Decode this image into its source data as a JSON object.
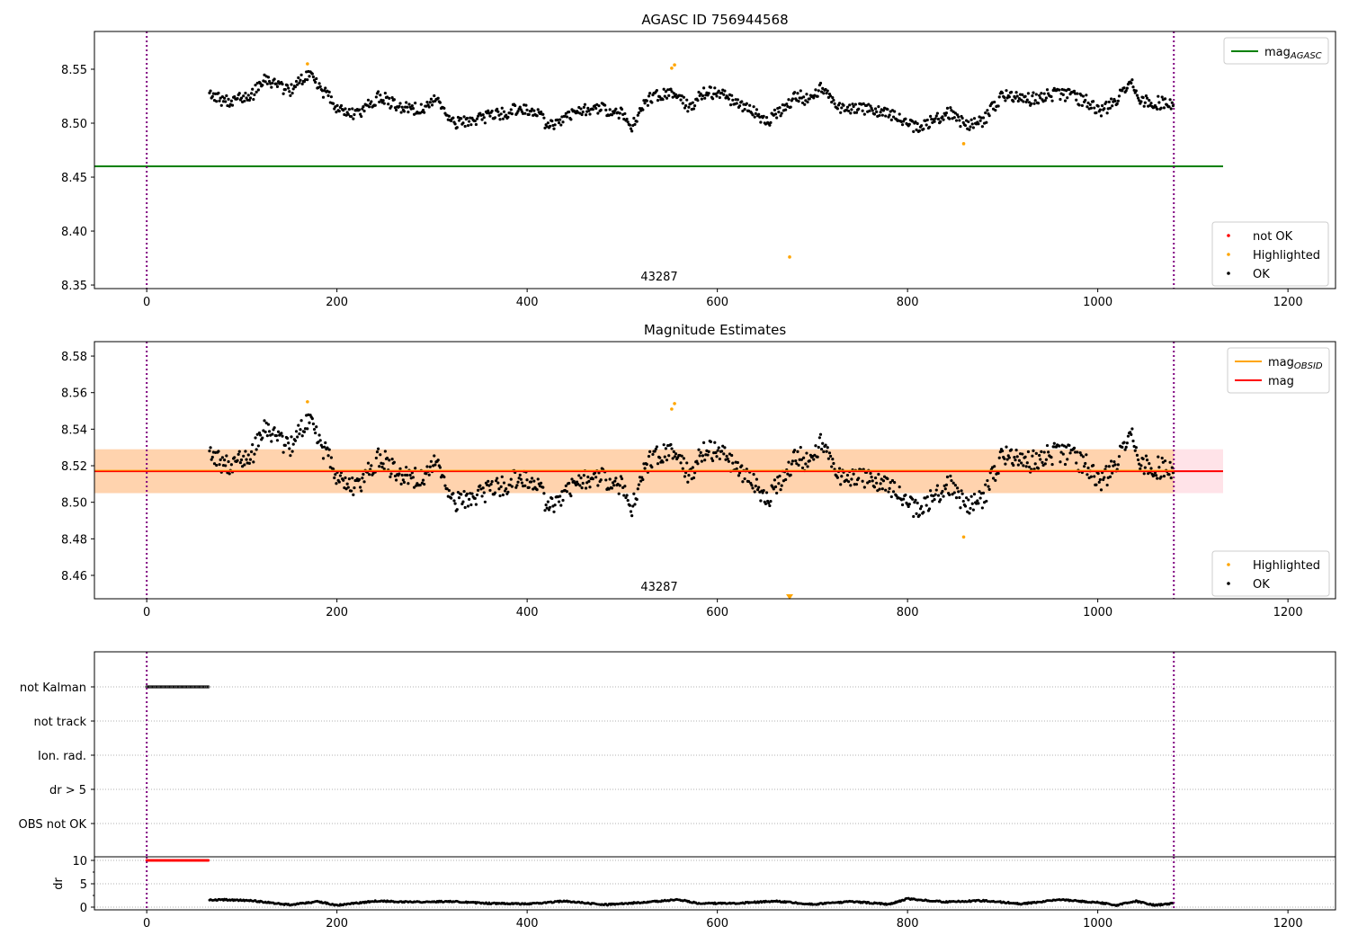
{
  "chart_data": [
    {
      "type": "scatter",
      "title": "AGASC ID 756944568",
      "xlim": [
        -55,
        1250
      ],
      "ylim": [
        8.3467,
        8.585
      ],
      "xticks": [
        0,
        200,
        400,
        600,
        800,
        1000,
        1200
      ],
      "yticks": [
        8.35,
        8.4,
        8.45,
        8.5,
        8.55
      ],
      "ytick_labels": [
        "8.35",
        "8.40",
        "8.45",
        "8.50",
        "8.55"
      ],
      "mag_agasc": 8.46,
      "vlines": [
        0,
        1080
      ],
      "annotation": "43287",
      "legend_top": {
        "label": "mag",
        "sub": "AGASC",
        "color": "#008000"
      },
      "legend_bottom": [
        {
          "label": "not OK",
          "color": "#ff0000"
        },
        {
          "label": "Highlighted",
          "color": "#ffa500"
        },
        {
          "label": "OK",
          "color": "#000000"
        }
      ],
      "highlighted": [
        [
          169,
          8.555
        ],
        [
          552,
          8.551
        ],
        [
          555,
          8.554
        ],
        [
          859,
          8.481
        ],
        [
          676,
          8.376
        ]
      ]
    },
    {
      "type": "scatter",
      "title": "Magnitude Estimates",
      "xlim": [
        -55,
        1250
      ],
      "ylim": [
        8.4472,
        8.5879
      ],
      "xticks": [
        0,
        200,
        400,
        600,
        800,
        1000,
        1200
      ],
      "yticks": [
        8.46,
        8.48,
        8.5,
        8.52,
        8.54,
        8.56,
        8.58
      ],
      "ytick_labels": [
        "8.46",
        "8.48",
        "8.50",
        "8.52",
        "8.54",
        "8.56",
        "8.58"
      ],
      "mag": 8.517,
      "mag_band": [
        8.505,
        8.529
      ],
      "annotation": "43287",
      "legend_top": [
        {
          "label": "mag",
          "sub": "OBSID",
          "color": "#ffa500"
        },
        {
          "label": "mag",
          "sub": "",
          "color": "#ff0000"
        }
      ],
      "legend_bottom": [
        {
          "label": "Highlighted",
          "color": "#ffa500"
        },
        {
          "label": "OK",
          "color": "#000000"
        }
      ]
    },
    {
      "type": "scatter",
      "title": "",
      "categories": [
        "not Kalman",
        "not track",
        "Ion. rad.",
        "dr > 5",
        "OBS not OK"
      ],
      "flags": {
        "not Kalman": [
          0,
          65
        ]
      }
    },
    {
      "type": "scatter",
      "ylabel": "dr",
      "ylim": [
        -0.58,
        10.77
      ],
      "yticks": [
        0,
        5,
        10
      ],
      "ytick_labels": [
        "0",
        "5",
        "10"
      ],
      "dr_saturated_range": [
        0,
        65
      ],
      "dr_saturated_value": 10,
      "dr_trend": [
        [
          65,
          1.5
        ],
        [
          80,
          1.6
        ],
        [
          110,
          1.4
        ],
        [
          150,
          0.5
        ],
        [
          180,
          1.2
        ],
        [
          200,
          0.4
        ],
        [
          240,
          1.3
        ],
        [
          280,
          1.1
        ],
        [
          320,
          1.2
        ],
        [
          360,
          0.8
        ],
        [
          400,
          0.7
        ],
        [
          440,
          1.3
        ],
        [
          480,
          0.5
        ],
        [
          520,
          1.0
        ],
        [
          560,
          1.6
        ],
        [
          580,
          0.8
        ],
        [
          620,
          0.8
        ],
        [
          660,
          1.3
        ],
        [
          700,
          0.6
        ],
        [
          740,
          1.2
        ],
        [
          780,
          0.6
        ],
        [
          800,
          1.8
        ],
        [
          840,
          1.1
        ],
        [
          880,
          1.4
        ],
        [
          920,
          0.7
        ],
        [
          960,
          1.6
        ],
        [
          1000,
          1.0
        ],
        [
          1020,
          0.4
        ],
        [
          1040,
          1.3
        ],
        [
          1060,
          0.4
        ],
        [
          1080,
          0.8
        ]
      ]
    }
  ],
  "trend": [
    [
      65,
      8.525
    ],
    [
      90,
      8.52
    ],
    [
      110,
      8.525
    ],
    [
      125,
      8.54
    ],
    [
      150,
      8.53
    ],
    [
      170,
      8.545
    ],
    [
      185,
      8.53
    ],
    [
      200,
      8.515
    ],
    [
      220,
      8.508
    ],
    [
      245,
      8.525
    ],
    [
      265,
      8.515
    ],
    [
      290,
      8.512
    ],
    [
      305,
      8.522
    ],
    [
      320,
      8.5
    ],
    [
      340,
      8.502
    ],
    [
      370,
      8.508
    ],
    [
      395,
      8.515
    ],
    [
      415,
      8.508
    ],
    [
      420,
      8.495
    ],
    [
      440,
      8.505
    ],
    [
      470,
      8.515
    ],
    [
      500,
      8.51
    ],
    [
      510,
      8.498
    ],
    [
      530,
      8.525
    ],
    [
      550,
      8.528
    ],
    [
      570,
      8.515
    ],
    [
      590,
      8.53
    ],
    [
      610,
      8.525
    ],
    [
      640,
      8.51
    ],
    [
      650,
      8.5
    ],
    [
      670,
      8.515
    ],
    [
      685,
      8.525
    ],
    [
      700,
      8.52
    ],
    [
      710,
      8.535
    ],
    [
      730,
      8.515
    ],
    [
      760,
      8.512
    ],
    [
      790,
      8.505
    ],
    [
      810,
      8.495
    ],
    [
      830,
      8.505
    ],
    [
      850,
      8.51
    ],
    [
      860,
      8.497
    ],
    [
      880,
      8.503
    ],
    [
      900,
      8.525
    ],
    [
      930,
      8.522
    ],
    [
      960,
      8.528
    ],
    [
      990,
      8.52
    ],
    [
      1000,
      8.51
    ],
    [
      1020,
      8.52
    ],
    [
      1035,
      8.54
    ],
    [
      1045,
      8.52
    ],
    [
      1080,
      8.518
    ]
  ]
}
